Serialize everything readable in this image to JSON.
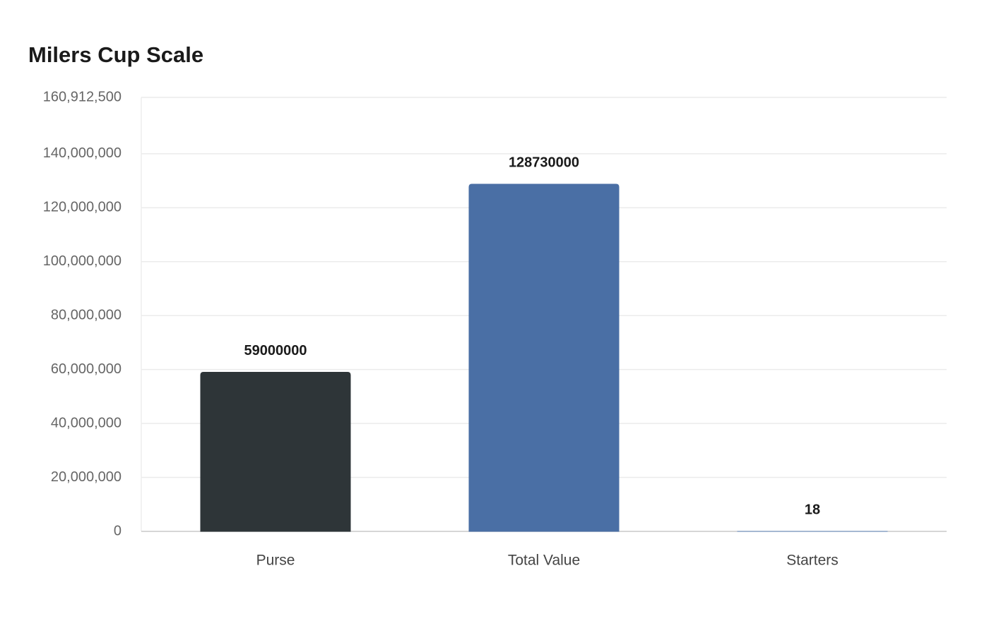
{
  "chart_data": {
    "type": "bar",
    "title": "Milers Cup Scale",
    "categories": [
      "Purse",
      "Total Value",
      "Starters"
    ],
    "values": [
      59000000,
      128730000,
      18
    ],
    "colors": [
      "#2e3538",
      "#4a6fa5",
      "#6a8fc4"
    ],
    "ylim": [
      0,
      160912500
    ],
    "yticks": [
      0,
      {
        "value": 20000000,
        "label": "20,000,000"
      },
      {
        "value": 40000000,
        "label": "40,000,000"
      },
      {
        "value": 60000000,
        "label": "60,000,000"
      },
      {
        "value": 80000000,
        "label": "80,000,000"
      },
      {
        "value": 100000000,
        "label": "100,000,000"
      },
      {
        "value": 120000000,
        "label": "120,000,000"
      },
      {
        "value": 140000000,
        "label": "140,000,000"
      },
      {
        "value": 160912500,
        "label": "160,912,500"
      }
    ],
    "grid": true
  }
}
